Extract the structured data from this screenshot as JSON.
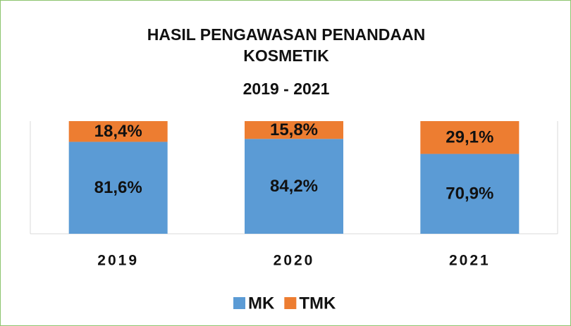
{
  "chart_data": {
    "type": "stacked_bar",
    "title": "HASIL PENGAWASAN PENANDAAN KOSMETIK",
    "subtitle": "2019 - 2021",
    "categories": [
      "2019",
      "2020",
      "2021"
    ],
    "series": [
      {
        "name": "MK",
        "color": "#5b9bd5",
        "values": [
          81.6,
          84.2,
          70.9
        ],
        "value_labels": [
          "81,6%",
          "84,2%",
          "70,9%"
        ]
      },
      {
        "name": "TMK",
        "color": "#ed7d31",
        "values": [
          18.4,
          15.8,
          29.1
        ],
        "value_labels": [
          "18,4%",
          "15,8%",
          "29,1%"
        ]
      }
    ],
    "ylim": [
      0,
      100
    ],
    "legend": "bottom"
  }
}
